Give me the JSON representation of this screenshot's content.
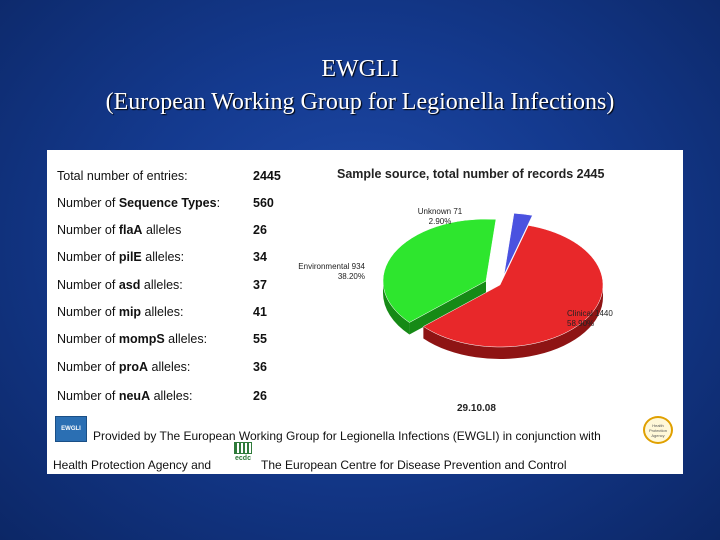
{
  "slide": {
    "title_line1": "EWGLI",
    "title_line2": "(European Working Group for Legionella Infections)"
  },
  "stats": [
    {
      "prefix": "Total number of entries:",
      "bold": "",
      "suffix": "",
      "value": "2445"
    },
    {
      "prefix": "Number of ",
      "bold": "Sequence Types",
      "suffix": ":",
      "value": "560"
    },
    {
      "prefix": "Number of ",
      "bold": "flaA",
      "suffix": " alleles",
      "value": "26"
    },
    {
      "prefix": "Number of ",
      "bold": "pilE",
      "suffix": " alleles:",
      "value": "34"
    },
    {
      "prefix": "Number of ",
      "bold": "asd",
      "suffix": " alleles:",
      "value": "37"
    },
    {
      "prefix": "Number of ",
      "bold": "mip",
      "suffix": " alleles:",
      "value": "41"
    },
    {
      "prefix": "Number of ",
      "bold": "mompS",
      "suffix": " alleles:",
      "value": "55"
    },
    {
      "prefix": "Number of ",
      "bold": "proA",
      "suffix": " alleles:",
      "value": "36"
    },
    {
      "prefix": "Number of ",
      "bold": "neuA",
      "suffix": " alleles:",
      "value": "26"
    }
  ],
  "chart_data": {
    "type": "pie",
    "title": "Sample source, total number of records 2445",
    "slices": [
      {
        "name": "Clinical",
        "count": 1440,
        "percent_label": "58.90%",
        "color": "#e8282a",
        "dark": "#8e1414"
      },
      {
        "name": "Environmental",
        "count": 934,
        "percent_label": "38.20%",
        "color": "#2ee62e",
        "dark": "#168a16"
      },
      {
        "name": "Unknown",
        "count": 71,
        "percent_label": "2.90%",
        "color": "#4a52e0",
        "dark": "#252a8a"
      }
    ],
    "date": "29.10.08"
  },
  "footer": {
    "line1": "Provided by The European Working Group for Legionella Infections (EWGLI) in conjunction with",
    "line2a": "Health Protection Agency and",
    "line2b": "The European Centre for Disease Prevention and Control",
    "ewgli_logo": "EWGLI",
    "ecdc_logo": "ecdc",
    "hpa_logo": "Health Protection Agency"
  }
}
